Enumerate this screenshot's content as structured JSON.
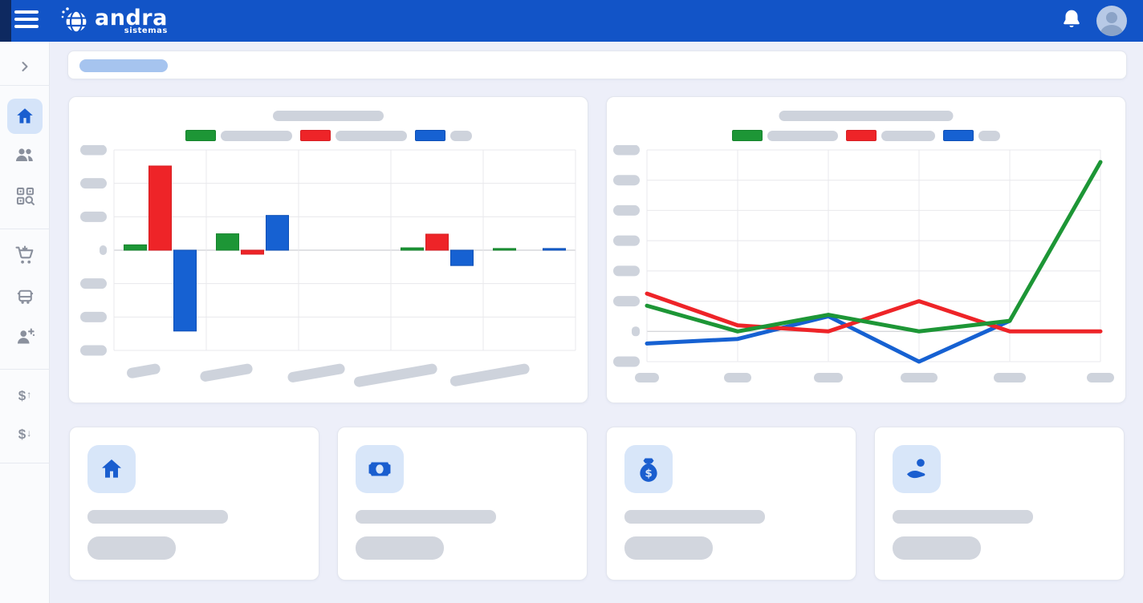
{
  "app": {
    "name": "andra",
    "tagline": "sistemas"
  },
  "colors": {
    "header_blue": "#1254c7",
    "header_dark_strip": "#0e2960",
    "page_background": "#edeff9",
    "card_background": "#ffffff",
    "skeleton_gray": "#ced3dc",
    "skeleton_blue": "#a6c4ef",
    "accent_blue": "#1a5ecf",
    "series_green": "#1d9636",
    "series_red": "#ee2428",
    "series_blue": "#1661d2"
  },
  "header": {
    "icons": [
      "menu-icon",
      "logo-globe-icon",
      "notifications-bell-icon",
      "user-avatar"
    ]
  },
  "sidebar": {
    "items": [
      {
        "icon": "chevron-right-icon",
        "active": false
      },
      {
        "icon": "home-icon",
        "active": true
      },
      {
        "icon": "users-icon",
        "active": false
      },
      {
        "icon": "qr-search-icon",
        "active": false
      },
      {
        "icon": "cart-icon",
        "active": false
      },
      {
        "icon": "vehicle-icon",
        "active": false
      },
      {
        "icon": "person-add-icon",
        "active": false
      },
      {
        "icon": "money-in-icon",
        "active": false
      },
      {
        "icon": "money-out-icon",
        "active": false
      }
    ]
  },
  "breadcrumb": {
    "skeleton": true
  },
  "chart_data": [
    {
      "type": "bar",
      "title": "",
      "title_skeleton": true,
      "legend_position": "top",
      "grid": true,
      "categories_skeleton": 5,
      "ylim": [
        -3,
        3
      ],
      "series": [
        {
          "name": "series-green",
          "color": "#1d9636",
          "border": "#15832c",
          "values": [
            0.16,
            0.49,
            0,
            0.07,
            0.05
          ]
        },
        {
          "name": "series-red",
          "color": "#ee2428",
          "border": "#d61e22",
          "values": [
            2.52,
            -0.12,
            0,
            0.48,
            0
          ]
        },
        {
          "name": "series-blue",
          "color": "#1661d2",
          "border": "#0d4fb6",
          "values": [
            -2.42,
            1.04,
            0,
            -0.46,
            0.05
          ]
        }
      ]
    },
    {
      "type": "line",
      "title": "",
      "title_skeleton": true,
      "legend_position": "top",
      "grid": true,
      "x_skeleton": 6,
      "ylim": [
        -1,
        6
      ],
      "series": [
        {
          "name": "series-green",
          "color": "#1d9636",
          "border": "#15832c",
          "values": [
            0.85,
            0,
            0.55,
            0,
            0.35,
            5.6
          ]
        },
        {
          "name": "series-red",
          "color": "#ee2428",
          "border": "#d61e22",
          "values": [
            1.25,
            0.2,
            0,
            1.0,
            0,
            0
          ]
        },
        {
          "name": "series-blue",
          "color": "#1661d2",
          "border": "#0d4fb6",
          "values": [
            -0.4,
            -0.25,
            0.5,
            -1.0,
            0.35,
            null
          ]
        }
      ]
    }
  ],
  "summary_cards": [
    {
      "icon": "home-icon",
      "skeleton_lines": 2
    },
    {
      "icon": "banknote-icon",
      "skeleton_lines": 2
    },
    {
      "icon": "money-bag-icon",
      "skeleton_lines": 2
    },
    {
      "icon": "person-care-icon",
      "skeleton_lines": 2
    }
  ]
}
